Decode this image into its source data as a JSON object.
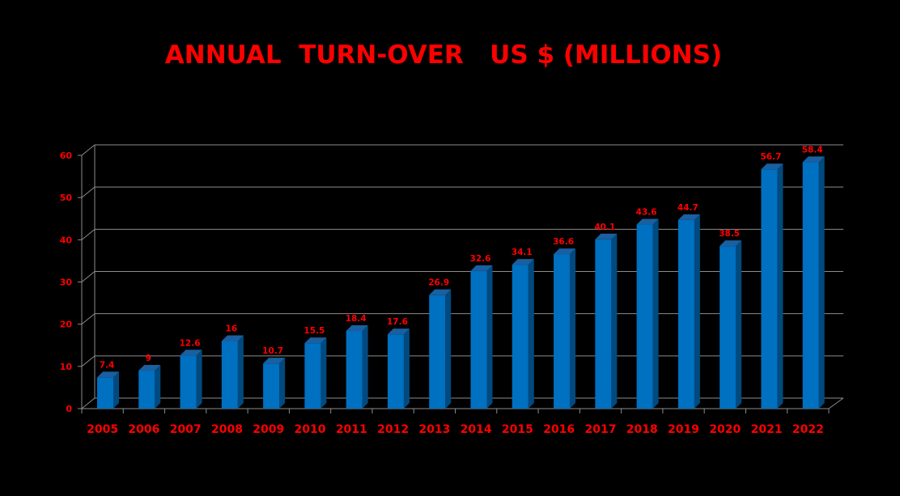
{
  "chart_data": {
    "type": "bar",
    "title": "ANNUAL  TURN-OVER   US $ (MILLIONS)",
    "xlabel": "",
    "ylabel": "",
    "categories": [
      "2005",
      "2006",
      "2007",
      "2008",
      "2009",
      "2010",
      "2011",
      "2012",
      "2013",
      "2014",
      "2015",
      "2016",
      "2017",
      "2018",
      "2019",
      "2020",
      "2021",
      "2022"
    ],
    "values": [
      7.4,
      9,
      12.6,
      16,
      10.7,
      15.5,
      18.4,
      17.6,
      26.9,
      32.6,
      34.1,
      36.6,
      40.1,
      43.6,
      44.7,
      38.5,
      56.7,
      58.4
    ],
    "data_labels": [
      "7.4",
      "9",
      "12.6",
      "16",
      "10.7",
      "15.5",
      "18.4",
      "17.6",
      "26.9",
      "32.6",
      "34.1",
      "36.6",
      "40.1",
      "43.6",
      "44.7",
      "38.5",
      "56.7",
      "58.4"
    ],
    "y_ticks": [
      "0",
      "10",
      "20",
      "30",
      "40",
      "50",
      "60"
    ],
    "ylim": [
      0,
      60
    ],
    "grid": true,
    "legend": "none",
    "style": "3d-column",
    "colors": {
      "background": "#000000",
      "bar_front": "#0070c0",
      "bar_side": "#004a80",
      "bar_top": "#1a5fa0",
      "text": "#ff0000",
      "grid": "#8c8c8c"
    }
  }
}
